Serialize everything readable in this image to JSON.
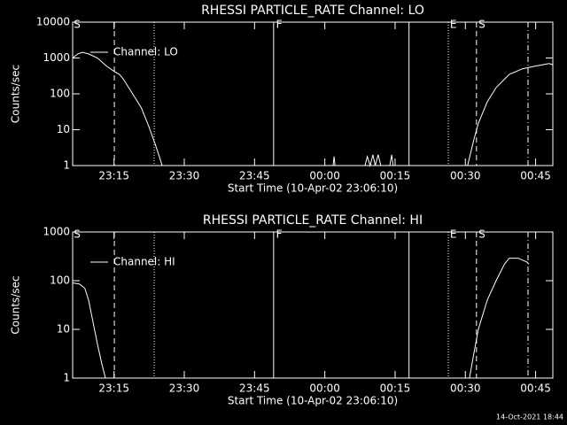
{
  "chart_data": [
    {
      "type": "line",
      "title": "RHESSI PARTICLE_RATE Channel: LO",
      "xlabel": "Start Time (10-Apr-02 23:06:10)",
      "ylabel": "Counts/sec",
      "log_y": true,
      "legend": "upper left",
      "background": "#000000",
      "color": "#ffffff",
      "xlim": [
        0,
        102.5
      ],
      "xticks": [
        {
          "value": 8.83,
          "label": "23:15"
        },
        {
          "value": 23.83,
          "label": "23:30"
        },
        {
          "value": 38.83,
          "label": "23:45"
        },
        {
          "value": 53.83,
          "label": "00:00"
        },
        {
          "value": 68.83,
          "label": "00:15"
        },
        {
          "value": 83.83,
          "label": "00:30"
        },
        {
          "value": 98.83,
          "label": "00:45"
        }
      ],
      "ylim": [
        1,
        10000
      ],
      "yticks": [
        1,
        10,
        100,
        1000,
        10000
      ],
      "x": [
        0,
        1.1,
        2.1,
        3.4,
        5.3,
        7.2,
        8.9,
        10.0,
        10.9,
        12.8,
        14.7,
        16.3,
        17.6,
        18.5,
        19.1,
        20,
        55.6,
        55.8,
        56,
        57,
        62.4,
        62.9,
        63.5,
        64.1,
        64.6,
        65.2,
        65.8,
        66,
        67.7,
        68.1,
        68.4,
        70,
        84.3,
        85.6,
        86.6,
        88.5,
        90.4,
        93.2,
        96.0,
        98.9,
        101.7,
        102.5
      ],
      "series": [
        {
          "name": "Channel: LO",
          "color": "#ffffff",
          "values": [
            1000,
            1300,
            1450,
            1300,
            1000,
            600,
            420,
            350,
            250,
            100,
            40,
            12,
            4,
            1.8,
            1,
            null,
            1,
            1.8,
            1,
            null,
            1,
            1.8,
            1,
            2,
            1,
            2,
            1,
            null,
            1,
            2,
            1,
            null,
            1,
            5,
            15,
            60,
            150,
            350,
            500,
            600,
            700,
            650
          ]
        }
      ],
      "vlines": [
        {
          "x": 8.9,
          "style": "dashed"
        },
        {
          "x": 17.4,
          "style": "dotted"
        },
        {
          "x": 42.9,
          "style": "solid"
        },
        {
          "x": 71.8,
          "style": "solid"
        },
        {
          "x": 80.2,
          "style": "dotted"
        },
        {
          "x": 86.2,
          "style": "dashed"
        },
        {
          "x": 97.2,
          "style": "dashdot"
        }
      ],
      "annotations": [
        {
          "x": 0.4,
          "text": "S"
        },
        {
          "x": 43.5,
          "text": "F"
        },
        {
          "x": 80.7,
          "text": "E"
        },
        {
          "x": 86.8,
          "text": "S"
        }
      ]
    },
    {
      "type": "line",
      "title": "RHESSI PARTICLE_RATE Channel: HI",
      "xlabel": "Start Time (10-Apr-02 23:06:10)",
      "ylabel": "Counts/sec",
      "log_y": true,
      "legend": "upper left",
      "background": "#000000",
      "color": "#ffffff",
      "xlim": [
        0,
        102.5
      ],
      "xticks": [
        {
          "value": 8.83,
          "label": "23:15"
        },
        {
          "value": 23.83,
          "label": "23:30"
        },
        {
          "value": 38.83,
          "label": "23:45"
        },
        {
          "value": 53.83,
          "label": "00:00"
        },
        {
          "value": 68.83,
          "label": "00:15"
        },
        {
          "value": 83.83,
          "label": "00:30"
        },
        {
          "value": 98.83,
          "label": "00:45"
        }
      ],
      "ylim": [
        1,
        1000
      ],
      "yticks": [
        1,
        10,
        100,
        1000
      ],
      "x": [
        0,
        1.5,
        2.6,
        3.4,
        4.3,
        5.3,
        6.2,
        7.0,
        8,
        84.7,
        85.6,
        86.6,
        88.5,
        90.4,
        92.2,
        93.2,
        95.1,
        97.0,
        97.4
      ],
      "series": [
        {
          "name": "Channel: HI",
          "color": "#ffffff",
          "values": [
            90,
            85,
            70,
            40,
            15,
            5,
            2,
            1,
            null,
            1,
            3,
            10,
            40,
            100,
            220,
            290,
            290,
            240,
            220
          ]
        }
      ],
      "vlines": [
        {
          "x": 8.9,
          "style": "dashed"
        },
        {
          "x": 17.4,
          "style": "dotted"
        },
        {
          "x": 42.9,
          "style": "solid"
        },
        {
          "x": 71.8,
          "style": "solid"
        },
        {
          "x": 80.2,
          "style": "dotted"
        },
        {
          "x": 86.2,
          "style": "dashed"
        },
        {
          "x": 97.2,
          "style": "dashdot"
        }
      ],
      "annotations": [
        {
          "x": 0.4,
          "text": "S"
        },
        {
          "x": 43.5,
          "text": "F"
        },
        {
          "x": 80.7,
          "text": "E"
        },
        {
          "x": 86.8,
          "text": "S"
        }
      ]
    }
  ],
  "footer": "14-Oct-2021 18:44"
}
